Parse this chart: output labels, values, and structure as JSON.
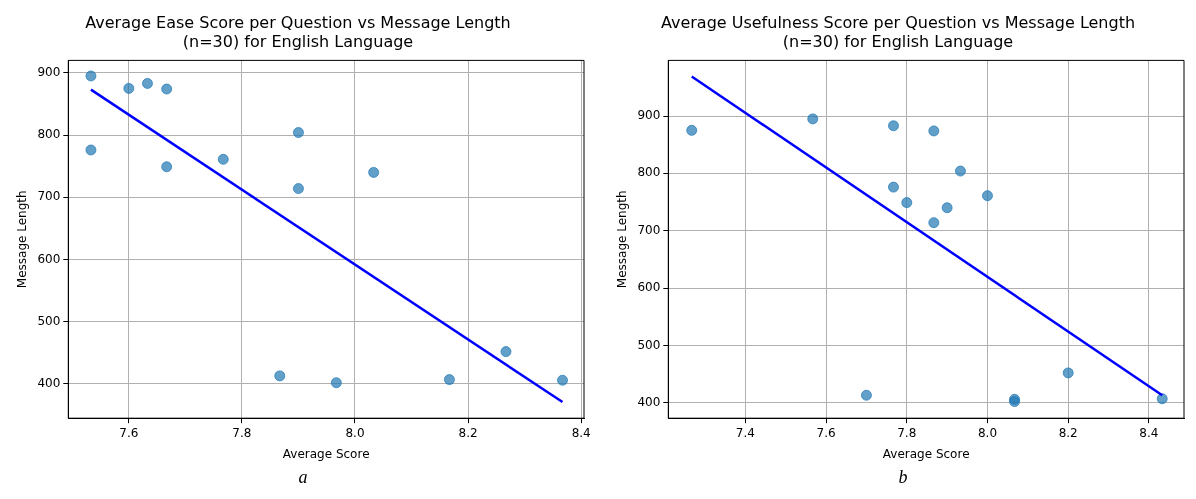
{
  "chart_data": [
    {
      "type": "scatter",
      "title": "Average Ease Score per Question vs Message Length\n(n=30) for English Language",
      "xlabel": "Average Score",
      "ylabel": "Message Length",
      "xlim": [
        7.493,
        8.405
      ],
      "xticks": [
        7.6,
        7.8,
        {
          "value": 8,
          "label": "8.0"
        },
        8.2,
        8.4
      ],
      "ylim": [
        345,
        920
      ],
      "yticks": [
        400,
        500,
        600,
        700,
        800,
        900
      ],
      "grid": true,
      "legend": false,
      "annotations": [
        "a"
      ],
      "series": [
        {
          "marker": "circle",
          "color": "#1f77b4",
          "x": [
            7.533,
            7.6,
            7.633,
            7.667,
            7.533,
            7.667,
            7.767,
            7.9,
            7.9,
            8.033,
            7.867,
            7.967,
            8.167,
            8.267,
            8.367
          ],
          "values": [
            895,
            875,
            883,
            874,
            776,
            749,
            761,
            804,
            714,
            740,
            413,
            402,
            407,
            452,
            406
          ]
        },
        {
          "type": "line",
          "color": "#0000ff",
          "x": [
            7.533,
            8.367
          ],
          "values": [
            873,
            371
          ]
        }
      ]
    },
    {
      "type": "scatter",
      "title": "Average Usefulness Score per Question vs Message Length\n(n=30) for English Language",
      "xlabel": "Average Score",
      "ylabel": "Message Length",
      "xlim": [
        7.209,
        8.487
      ],
      "xticks": [
        7.4,
        7.6,
        7.8,
        {
          "value": 8,
          "label": "8.0"
        },
        8.2,
        8.4
      ],
      "ylim": [
        373,
        997
      ],
      "yticks": [
        400,
        500,
        600,
        700,
        800,
        900
      ],
      "grid": true,
      "legend": false,
      "annotations": [
        "b"
      ],
      "series": [
        {
          "marker": "circle",
          "color": "#1f77b4",
          "x": [
            7.267,
            7.567,
            7.767,
            7.867,
            7.933,
            7.767,
            7.8,
            7.9,
            8.0,
            7.867,
            7.7,
            8.067,
            8.067,
            8.2,
            8.433
          ],
          "values": [
            875,
            895,
            883,
            874,
            804,
            776,
            749,
            740,
            761,
            714,
            413,
            406,
            402,
            452,
            407
          ]
        },
        {
          "type": "line",
          "color": "#0000ff",
          "x": [
            7.267,
            8.433
          ],
          "values": [
            969,
            413
          ]
        }
      ]
    }
  ]
}
